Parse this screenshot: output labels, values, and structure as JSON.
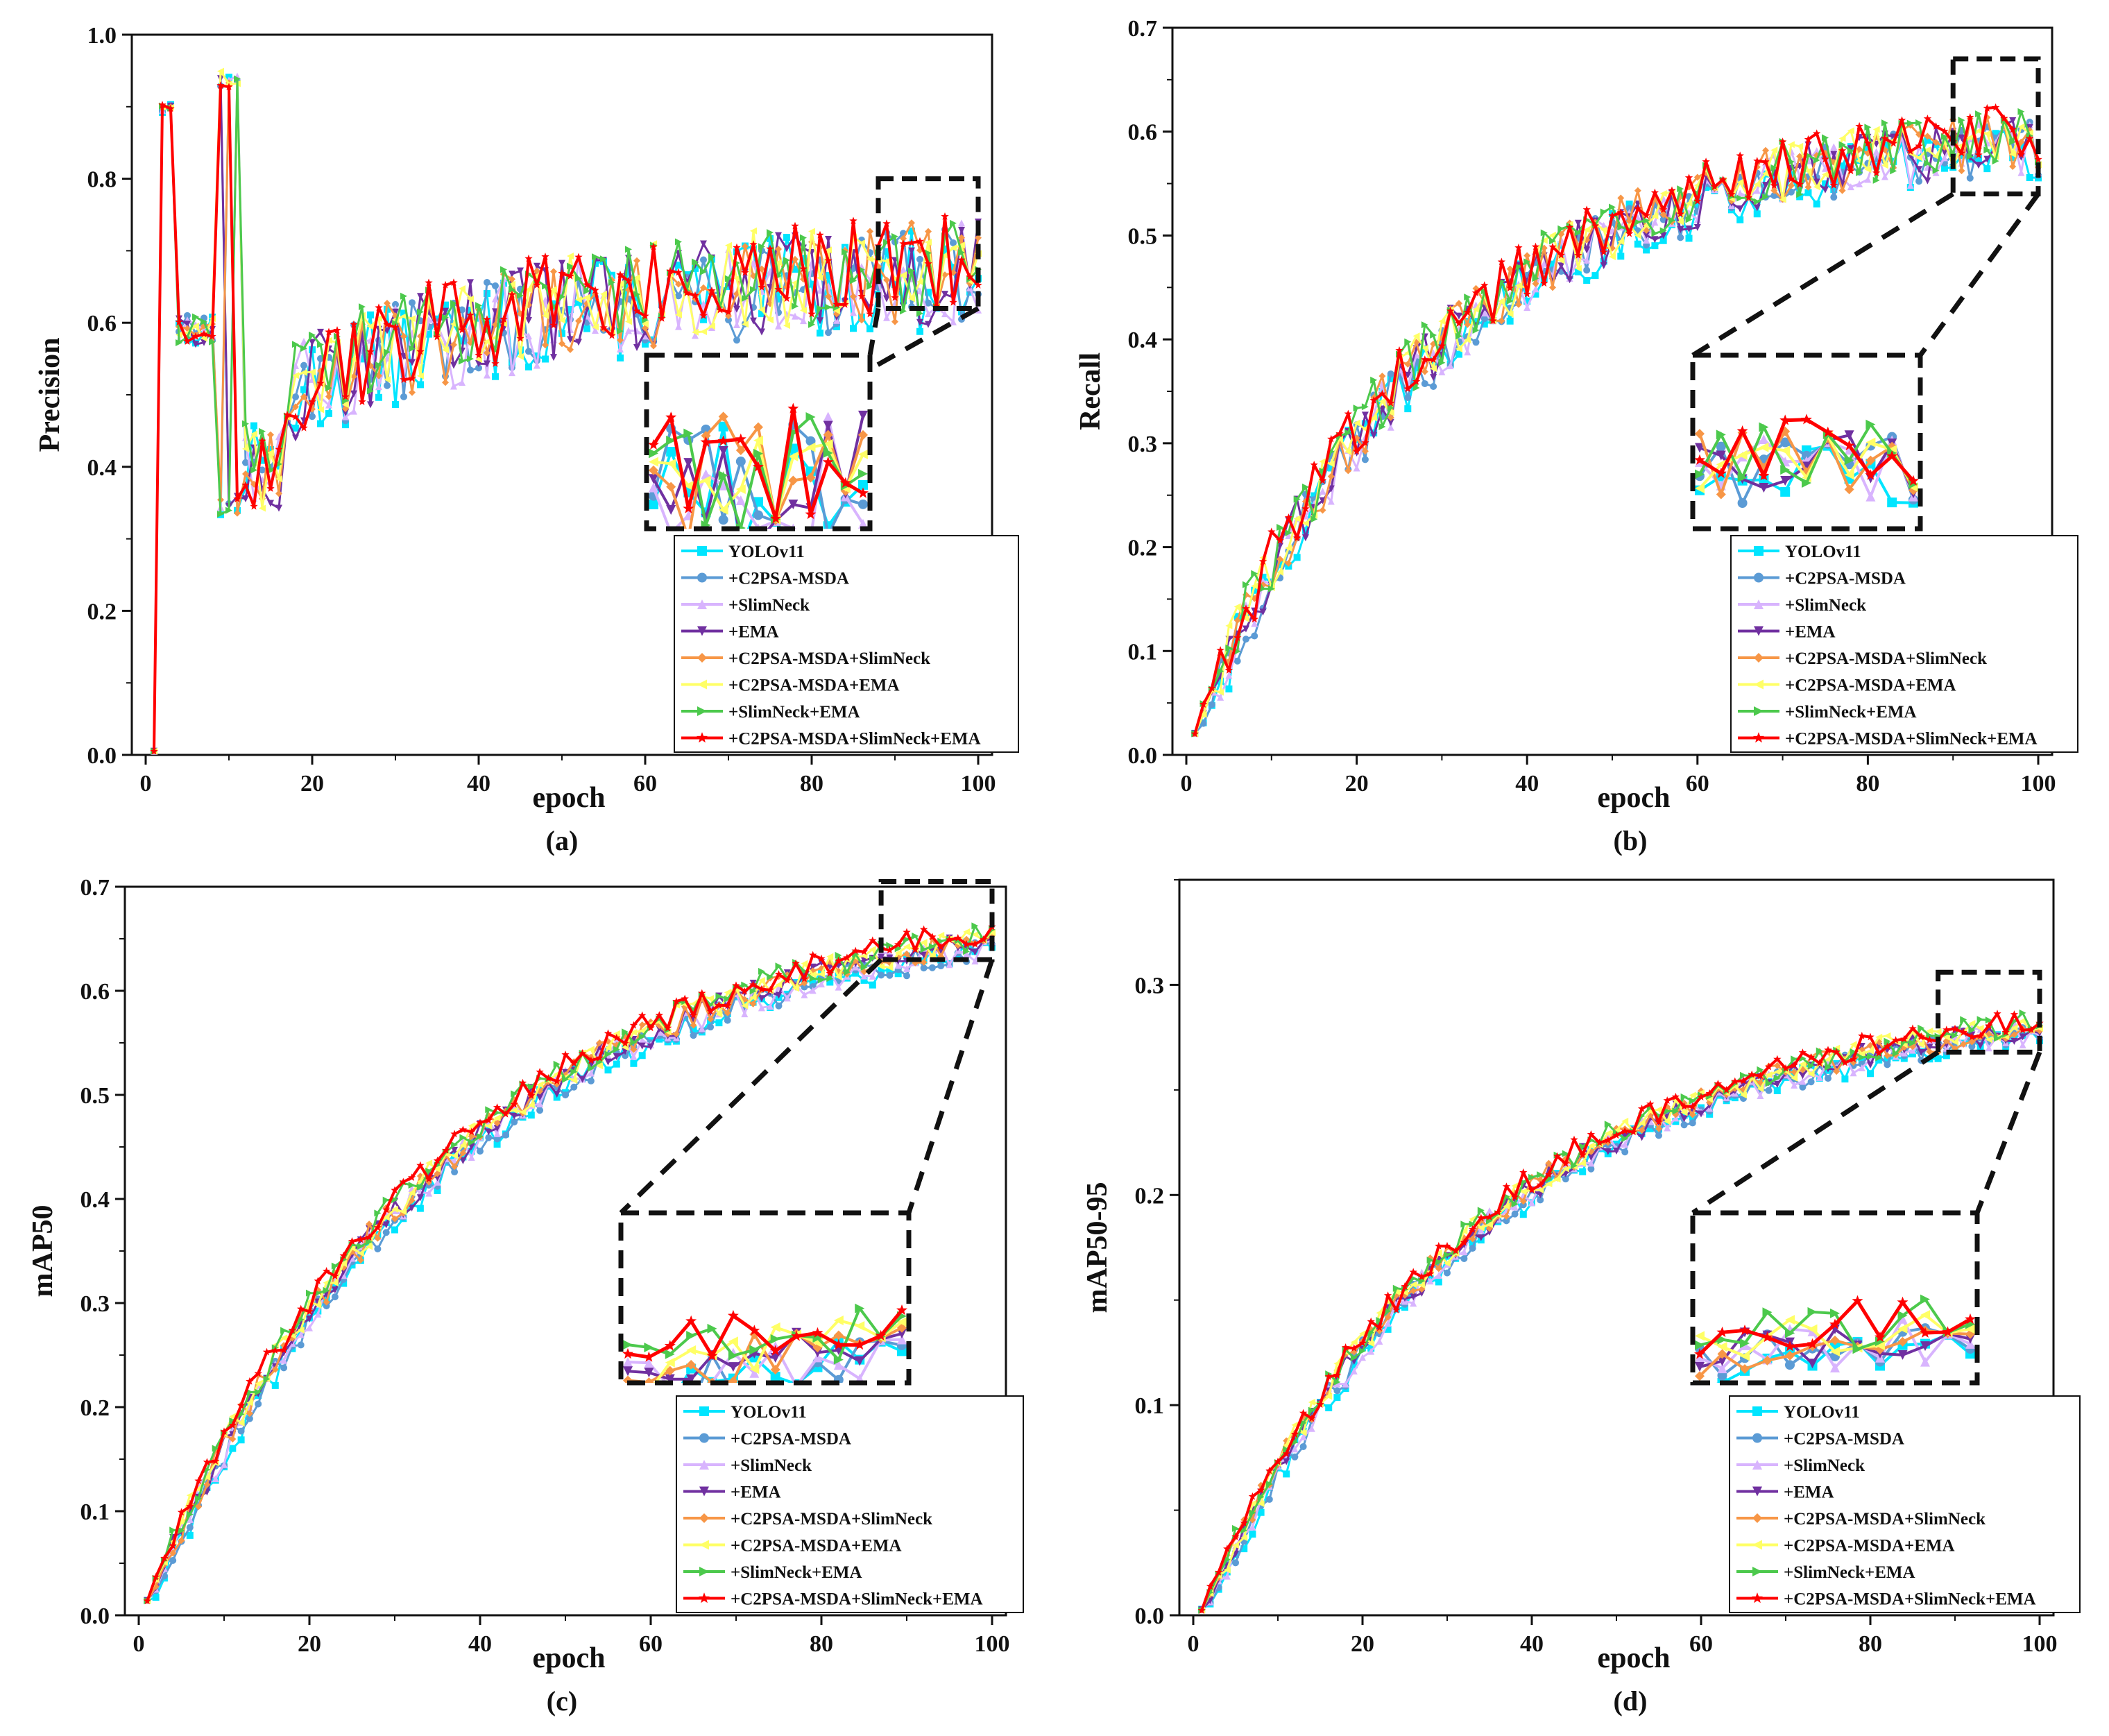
{
  "figure": {
    "background": "#ffffff"
  },
  "series": [
    {
      "name": "YOLOv11",
      "color": "#00e5ff",
      "marker": "square"
    },
    {
      "name": "+C2PSA-MSDA",
      "color": "#5b9bd5",
      "marker": "circle"
    },
    {
      "name": "+SlimNeck",
      "color": "#d8b4fe",
      "marker": "triangle-up"
    },
    {
      "name": "+EMA",
      "color": "#7030a0",
      "marker": "triangle-down"
    },
    {
      "name": "+C2PSA-MSDA+SlimNeck",
      "color": "#f79646",
      "marker": "diamond"
    },
    {
      "name": "+C2PSA-MSDA+EMA",
      "color": "#ffff66",
      "marker": "triangle-left"
    },
    {
      "name": "+SlimNeck+EMA",
      "color": "#4cc94c",
      "marker": "triangle-right"
    },
    {
      "name": "+C2PSA-MSDA+SlimNeck+EMA",
      "color": "#ff0000",
      "marker": "star"
    }
  ],
  "chart_data": [
    {
      "panel": "(a)",
      "type": "line",
      "ylabel": "Precision",
      "xlabel": "epoch",
      "xlim": [
        0,
        100
      ],
      "ylim": [
        0,
        1.0
      ],
      "xticks": [
        "0",
        "20",
        "40",
        "60",
        "80",
        "100"
      ],
      "yticks": [
        "0.0",
        "0.2",
        "0.4",
        "0.6",
        "0.8",
        "1.0"
      ],
      "zoom_x": [
        88,
        100
      ],
      "zoom_y": [
        0.62,
        0.8
      ],
      "trend": {
        "kind": "precision",
        "end": 0.69,
        "noise": 0.045
      }
    },
    {
      "panel": "(b)",
      "type": "line",
      "ylabel": "Recall",
      "xlabel": "epoch",
      "xlim": [
        0,
        100
      ],
      "ylim": [
        0,
        0.7
      ],
      "xticks": [
        "0",
        "20",
        "40",
        "60",
        "80",
        "100"
      ],
      "yticks": [
        "0.0",
        "0.1",
        "0.2",
        "0.3",
        "0.4",
        "0.5",
        "0.6",
        "0.7"
      ],
      "zoom_x": [
        90,
        100
      ],
      "zoom_y": [
        0.54,
        0.67
      ],
      "trend": {
        "kind": "growth",
        "start": 0.02,
        "end": 0.61,
        "rate": 0.035,
        "noise": 0.028
      }
    },
    {
      "panel": "(c)",
      "type": "line",
      "ylabel": "mAP50",
      "xlabel": "epoch",
      "xlim": [
        0,
        100
      ],
      "ylim": [
        0,
        0.7
      ],
      "xticks": [
        "0",
        "20",
        "40",
        "60",
        "80",
        "100"
      ],
      "yticks": [
        "0.0",
        "0.1",
        "0.2",
        "0.3",
        "0.4",
        "0.5",
        "0.6",
        "0.7"
      ],
      "zoom_x": [
        87,
        100
      ],
      "zoom_y": [
        0.63,
        0.705
      ],
      "trend": {
        "kind": "growth",
        "start": 0.01,
        "end": 0.69,
        "rate": 0.028,
        "noise": 0.013
      }
    },
    {
      "panel": "(d)",
      "type": "line",
      "ylabel": "mAP50-95",
      "xlabel": "epoch",
      "xlim": [
        0,
        100
      ],
      "ylim": [
        0,
        0.35
      ],
      "xticks": [
        "0",
        "20",
        "40",
        "60",
        "80",
        "100"
      ],
      "yticks": [
        "0.0",
        "0.1",
        "0.2",
        "0.3"
      ],
      "zoom_x": [
        88,
        100
      ],
      "zoom_y": [
        0.268,
        0.306
      ],
      "trend": {
        "kind": "growth",
        "start": 0.0,
        "end": 0.295,
        "rate": 0.03,
        "noise": 0.006
      }
    }
  ]
}
